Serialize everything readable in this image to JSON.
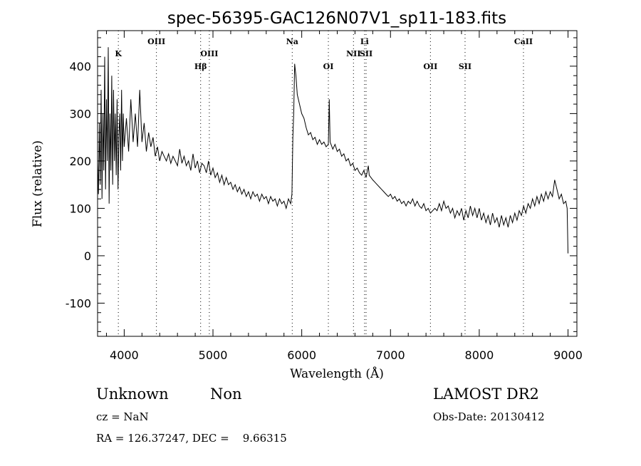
{
  "chart_data": {
    "type": "line",
    "title": "spec-56395-GAC126N07V1_sp11-183.fits",
    "xlabel": "Wavelength (Å)",
    "ylabel": "Flux (relative)",
    "xlim": [
      3700,
      9100
    ],
    "ylim": [
      -170,
      475
    ],
    "xticks": [
      4000,
      5000,
      6000,
      7000,
      8000,
      9000
    ],
    "yticks": [
      -100,
      0,
      100,
      200,
      300,
      400
    ],
    "grid": false,
    "spectral_lines": [
      {
        "label": "K",
        "wavelength": 3934,
        "row": 2
      },
      {
        "label": "OIII",
        "wavelength": 4363,
        "row": 1
      },
      {
        "label": "Hβ",
        "wavelength": 4861,
        "row": 3
      },
      {
        "label": "OIII",
        "wavelength": 4959,
        "row": 2
      },
      {
        "label": "Na",
        "wavelength": 5893,
        "row": 1
      },
      {
        "label": "OI",
        "wavelength": 6300,
        "row": 3
      },
      {
        "label": "NII",
        "wavelength": 6583,
        "row": 2
      },
      {
        "label": "Li",
        "wavelength": 6708,
        "row": 1
      },
      {
        "label": "SII",
        "wavelength": 6725,
        "row": 2
      },
      {
        "label": "OII",
        "wavelength": 7450,
        "row": 3
      },
      {
        "label": "SII",
        "wavelength": 7840,
        "row": 3
      },
      {
        "label": "CaII",
        "wavelength": 8498,
        "row": 1
      }
    ],
    "series": [
      {
        "name": "flux",
        "points": [
          [
            3700,
            200
          ],
          [
            3710,
            130
          ],
          [
            3720,
            280
          ],
          [
            3730,
            150
          ],
          [
            3740,
            350
          ],
          [
            3750,
            120
          ],
          [
            3760,
            300
          ],
          [
            3770,
            180
          ],
          [
            3780,
            420
          ],
          [
            3790,
            140
          ],
          [
            3800,
            330
          ],
          [
            3810,
            200
          ],
          [
            3820,
            440
          ],
          [
            3830,
            110
          ],
          [
            3840,
            300
          ],
          [
            3850,
            180
          ],
          [
            3860,
            380
          ],
          [
            3870,
            150
          ],
          [
            3880,
            350
          ],
          [
            3890,
            200
          ],
          [
            3900,
            300
          ],
          [
            3910,
            170
          ],
          [
            3920,
            330
          ],
          [
            3930,
            140
          ],
          [
            3940,
            250
          ],
          [
            3950,
            300
          ],
          [
            3960,
            180
          ],
          [
            3970,
            350
          ],
          [
            3980,
            200
          ],
          [
            3990,
            300
          ],
          [
            4000,
            230
          ],
          [
            4025,
            290
          ],
          [
            4050,
            220
          ],
          [
            4075,
            330
          ],
          [
            4100,
            240
          ],
          [
            4125,
            300
          ],
          [
            4150,
            230
          ],
          [
            4175,
            350
          ],
          [
            4200,
            240
          ],
          [
            4225,
            280
          ],
          [
            4250,
            220
          ],
          [
            4275,
            260
          ],
          [
            4300,
            230
          ],
          [
            4325,
            250
          ],
          [
            4350,
            210
          ],
          [
            4375,
            230
          ],
          [
            4400,
            200
          ],
          [
            4425,
            220
          ],
          [
            4450,
            210
          ],
          [
            4475,
            200
          ],
          [
            4500,
            215
          ],
          [
            4525,
            195
          ],
          [
            4550,
            210
          ],
          [
            4575,
            200
          ],
          [
            4600,
            190
          ],
          [
            4625,
            225
          ],
          [
            4650,
            195
          ],
          [
            4675,
            210
          ],
          [
            4700,
            190
          ],
          [
            4725,
            200
          ],
          [
            4750,
            180
          ],
          [
            4775,
            215
          ],
          [
            4800,
            185
          ],
          [
            4825,
            200
          ],
          [
            4850,
            175
          ],
          [
            4875,
            195
          ],
          [
            4900,
            190
          ],
          [
            4925,
            175
          ],
          [
            4950,
            200
          ],
          [
            4975,
            170
          ],
          [
            5000,
            185
          ],
          [
            5025,
            165
          ],
          [
            5050,
            175
          ],
          [
            5075,
            155
          ],
          [
            5100,
            170
          ],
          [
            5125,
            150
          ],
          [
            5150,
            165
          ],
          [
            5175,
            150
          ],
          [
            5200,
            155
          ],
          [
            5225,
            140
          ],
          [
            5250,
            150
          ],
          [
            5275,
            135
          ],
          [
            5300,
            145
          ],
          [
            5325,
            130
          ],
          [
            5350,
            140
          ],
          [
            5375,
            125
          ],
          [
            5400,
            135
          ],
          [
            5425,
            120
          ],
          [
            5450,
            135
          ],
          [
            5475,
            125
          ],
          [
            5500,
            130
          ],
          [
            5525,
            115
          ],
          [
            5550,
            130
          ],
          [
            5575,
            120
          ],
          [
            5600,
            125
          ],
          [
            5625,
            110
          ],
          [
            5650,
            125
          ],
          [
            5675,
            115
          ],
          [
            5700,
            120
          ],
          [
            5725,
            105
          ],
          [
            5750,
            120
          ],
          [
            5775,
            110
          ],
          [
            5800,
            115
          ],
          [
            5825,
            100
          ],
          [
            5850,
            120
          ],
          [
            5875,
            110
          ],
          [
            5890,
            130
          ],
          [
            5900,
            250
          ],
          [
            5910,
            300
          ],
          [
            5920,
            405
          ],
          [
            5935,
            380
          ],
          [
            5950,
            340
          ],
          [
            5975,
            320
          ],
          [
            6000,
            300
          ],
          [
            6025,
            290
          ],
          [
            6050,
            270
          ],
          [
            6075,
            255
          ],
          [
            6100,
            260
          ],
          [
            6125,
            245
          ],
          [
            6150,
            250
          ],
          [
            6175,
            235
          ],
          [
            6200,
            245
          ],
          [
            6225,
            235
          ],
          [
            6250,
            240
          ],
          [
            6275,
            230
          ],
          [
            6300,
            235
          ],
          [
            6310,
            330
          ],
          [
            6320,
            240
          ],
          [
            6350,
            225
          ],
          [
            6375,
            235
          ],
          [
            6400,
            220
          ],
          [
            6425,
            225
          ],
          [
            6450,
            210
          ],
          [
            6475,
            215
          ],
          [
            6500,
            200
          ],
          [
            6525,
            205
          ],
          [
            6550,
            190
          ],
          [
            6575,
            195
          ],
          [
            6600,
            180
          ],
          [
            6625,
            185
          ],
          [
            6650,
            175
          ],
          [
            6675,
            170
          ],
          [
            6700,
            180
          ],
          [
            6725,
            165
          ],
          [
            6750,
            190
          ],
          [
            6760,
            170
          ],
          [
            6800,
            160
          ],
          [
            6825,
            155
          ],
          [
            6850,
            150
          ],
          [
            6875,
            145
          ],
          [
            6900,
            140
          ],
          [
            6925,
            135
          ],
          [
            6950,
            130
          ],
          [
            6975,
            125
          ],
          [
            7000,
            130
          ],
          [
            7025,
            120
          ],
          [
            7050,
            125
          ],
          [
            7075,
            115
          ],
          [
            7100,
            120
          ],
          [
            7125,
            110
          ],
          [
            7150,
            115
          ],
          [
            7175,
            105
          ],
          [
            7200,
            115
          ],
          [
            7225,
            110
          ],
          [
            7250,
            120
          ],
          [
            7275,
            105
          ],
          [
            7300,
            115
          ],
          [
            7325,
            105
          ],
          [
            7350,
            100
          ],
          [
            7375,
            110
          ],
          [
            7400,
            95
          ],
          [
            7425,
            100
          ],
          [
            7450,
            90
          ],
          [
            7475,
            95
          ],
          [
            7500,
            100
          ],
          [
            7525,
            95
          ],
          [
            7550,
            110
          ],
          [
            7575,
            95
          ],
          [
            7600,
            115
          ],
          [
            7625,
            100
          ],
          [
            7650,
            105
          ],
          [
            7675,
            90
          ],
          [
            7700,
            100
          ],
          [
            7725,
            80
          ],
          [
            7750,
            95
          ],
          [
            7775,
            85
          ],
          [
            7800,
            100
          ],
          [
            7825,
            75
          ],
          [
            7850,
            95
          ],
          [
            7875,
            80
          ],
          [
            7900,
            105
          ],
          [
            7925,
            85
          ],
          [
            7950,
            100
          ],
          [
            7975,
            80
          ],
          [
            8000,
            100
          ],
          [
            8025,
            75
          ],
          [
            8050,
            90
          ],
          [
            8075,
            70
          ],
          [
            8100,
            85
          ],
          [
            8125,
            65
          ],
          [
            8150,
            90
          ],
          [
            8175,
            70
          ],
          [
            8200,
            80
          ],
          [
            8225,
            60
          ],
          [
            8250,
            85
          ],
          [
            8275,
            65
          ],
          [
            8300,
            80
          ],
          [
            8325,
            60
          ],
          [
            8350,
            85
          ],
          [
            8375,
            70
          ],
          [
            8400,
            90
          ],
          [
            8425,
            75
          ],
          [
            8450,
            95
          ],
          [
            8475,
            85
          ],
          [
            8500,
            105
          ],
          [
            8525,
            90
          ],
          [
            8550,
            110
          ],
          [
            8575,
            100
          ],
          [
            8600,
            120
          ],
          [
            8625,
            105
          ],
          [
            8650,
            125
          ],
          [
            8675,
            110
          ],
          [
            8700,
            130
          ],
          [
            8725,
            115
          ],
          [
            8750,
            135
          ],
          [
            8775,
            120
          ],
          [
            8800,
            135
          ],
          [
            8825,
            125
          ],
          [
            8850,
            160
          ],
          [
            8875,
            140
          ],
          [
            8900,
            120
          ],
          [
            8925,
            130
          ],
          [
            8950,
            110
          ],
          [
            8975,
            115
          ],
          [
            8990,
            100
          ],
          [
            9000,
            5
          ]
        ]
      }
    ]
  },
  "info": {
    "class": "Unknown",
    "subclass": "Non",
    "survey": "LAMOST DR2",
    "cz": "cz = NaN",
    "obs_date": "Obs-Date: 20130412",
    "coords": "RA = 126.37247, DEC =    9.66315"
  }
}
